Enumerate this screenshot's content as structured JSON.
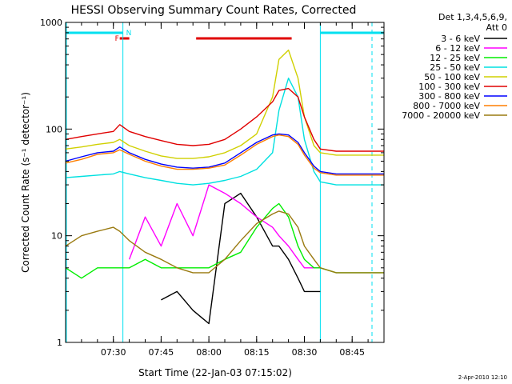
{
  "chart_data": {
    "type": "line",
    "title": "HESSI Observing Summary Count Rates, Corrected",
    "xlabel": "Start Time (22-Jan-03 07:15:02)",
    "ylabel": "Corrected Count Rate (s⁻¹ detector⁻¹)",
    "y_scale": "log",
    "ylim": [
      1,
      1000
    ],
    "xlim": [
      "07:15",
      "08:55"
    ],
    "x_ticks": [
      "07:30",
      "07:45",
      "08:00",
      "08:15",
      "08:30",
      "08:45"
    ],
    "y_ticks": [
      "1",
      "10",
      "100",
      "1000"
    ],
    "legend_header": [
      "Det 1,3,4,5,6,9,",
      "Att 0"
    ],
    "legend_position": "right",
    "footer": "2-Apr-2010 12:10",
    "flags": {
      "N_label": "N",
      "F_label": "F",
      "night_color": "#00e0f0",
      "flare_color": "#e00000",
      "night_intervals": [
        [
          "07:15",
          "07:33"
        ],
        [
          "08:35",
          "08:55"
        ]
      ],
      "flare_intervals": [
        [
          "07:32",
          "07:35"
        ],
        [
          "07:56",
          "08:26"
        ]
      ],
      "night_lines": [
        "07:33",
        "08:35"
      ]
    },
    "x": [
      "07:15",
      "07:20",
      "07:25",
      "07:30",
      "07:32",
      "07:35",
      "07:40",
      "07:45",
      "07:50",
      "07:55",
      "08:00",
      "08:05",
      "08:10",
      "08:15",
      "08:20",
      "08:22",
      "08:25",
      "08:28",
      "08:30",
      "08:33",
      "08:35",
      "08:40",
      "08:45",
      "08:50",
      "08:55"
    ],
    "series": [
      {
        "name": "3 - 6 keV",
        "color": "#000000",
        "values": [
          null,
          null,
          null,
          null,
          null,
          null,
          null,
          2.5,
          3,
          2,
          1.5,
          20,
          25,
          15,
          8,
          8,
          6,
          4,
          3,
          3,
          3,
          null,
          null,
          null,
          null
        ]
      },
      {
        "name": "6 - 12 keV",
        "color": "#ff00ff",
        "values": [
          null,
          null,
          null,
          null,
          null,
          6,
          15,
          8,
          20,
          10,
          30,
          25,
          20,
          15,
          12,
          10,
          8,
          6,
          5,
          5,
          5,
          null,
          null,
          null,
          null
        ]
      },
      {
        "name": "12 - 25 keV",
        "color": "#00ee00",
        "values": [
          5,
          4,
          5,
          5,
          5,
          5,
          6,
          5,
          5,
          5,
          5,
          6,
          7,
          12,
          18,
          20,
          15,
          8,
          6,
          5,
          5,
          4.5,
          4.5,
          4.5,
          4.5
        ]
      },
      {
        "name": "25 - 50 keV",
        "color": "#00e0e0",
        "values": [
          35,
          36,
          37,
          38,
          40,
          38,
          35,
          33,
          31,
          30,
          31,
          33,
          36,
          42,
          60,
          150,
          300,
          200,
          80,
          40,
          32,
          30,
          30,
          30,
          30
        ]
      },
      {
        "name": "50 - 100 keV",
        "color": "#d0d000",
        "values": [
          65,
          68,
          72,
          75,
          80,
          70,
          62,
          56,
          53,
          53,
          55,
          60,
          70,
          90,
          200,
          450,
          550,
          300,
          130,
          70,
          60,
          57,
          57,
          57,
          57
        ]
      },
      {
        "name": "100 - 300 keV",
        "color": "#e00000",
        "values": [
          80,
          85,
          90,
          95,
          110,
          95,
          85,
          78,
          72,
          70,
          72,
          80,
          100,
          130,
          180,
          230,
          240,
          200,
          130,
          80,
          65,
          62,
          62,
          62,
          62
        ]
      },
      {
        "name": "300 - 800 keV",
        "color": "#0000ff",
        "values": [
          50,
          55,
          60,
          62,
          68,
          60,
          52,
          47,
          44,
          43,
          44,
          48,
          60,
          75,
          88,
          90,
          88,
          75,
          60,
          45,
          40,
          38,
          38,
          38,
          38
        ]
      },
      {
        "name": "800 - 7000 keV",
        "color": "#ff7f00",
        "values": [
          48,
          52,
          58,
          60,
          64,
          58,
          50,
          45,
          42,
          42,
          43,
          46,
          57,
          72,
          85,
          88,
          85,
          72,
          57,
          43,
          39,
          37,
          37,
          37,
          37
        ]
      },
      {
        "name": "7000 - 20000 keV",
        "color": "#9a7a10",
        "values": [
          8,
          10,
          11,
          12,
          11,
          9,
          7,
          6,
          5,
          4.5,
          4.5,
          6,
          9,
          13,
          16,
          17,
          16,
          12,
          8,
          6,
          5,
          4.5,
          4.5,
          4.5,
          4.5
        ]
      }
    ]
  }
}
